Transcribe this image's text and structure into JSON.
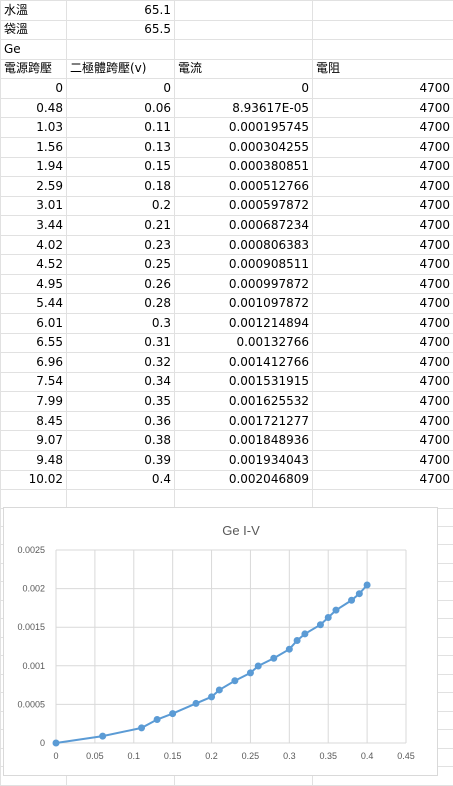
{
  "sheet": {
    "info_rows": [
      [
        "水溫",
        "65.1",
        "",
        ""
      ],
      [
        "袋溫",
        "65.5",
        "",
        ""
      ],
      [
        "Ge",
        "",
        "",
        ""
      ]
    ],
    "headers": [
      "電源跨壓",
      "二極體跨壓(v)",
      "電流",
      "電阻"
    ],
    "rows": [
      [
        "0",
        "0",
        "0",
        "4700"
      ],
      [
        "0.48",
        "0.06",
        "8.93617E-05",
        "4700"
      ],
      [
        "1.03",
        "0.11",
        "0.000195745",
        "4700"
      ],
      [
        "1.56",
        "0.13",
        "0.000304255",
        "4700"
      ],
      [
        "1.94",
        "0.15",
        "0.000380851",
        "4700"
      ],
      [
        "2.59",
        "0.18",
        "0.000512766",
        "4700"
      ],
      [
        "3.01",
        "0.2",
        "0.000597872",
        "4700"
      ],
      [
        "3.44",
        "0.21",
        "0.000687234",
        "4700"
      ],
      [
        "4.02",
        "0.23",
        "0.000806383",
        "4700"
      ],
      [
        "4.52",
        "0.25",
        "0.000908511",
        "4700"
      ],
      [
        "4.95",
        "0.26",
        "0.000997872",
        "4700"
      ],
      [
        "5.44",
        "0.28",
        "0.001097872",
        "4700"
      ],
      [
        "6.01",
        "0.3",
        "0.001214894",
        "4700"
      ],
      [
        "6.55",
        "0.31",
        "0.00132766",
        "4700"
      ],
      [
        "6.96",
        "0.32",
        "0.001412766",
        "4700"
      ],
      [
        "7.54",
        "0.34",
        "0.001531915",
        "4700"
      ],
      [
        "7.99",
        "0.35",
        "0.001625532",
        "4700"
      ],
      [
        "8.45",
        "0.36",
        "0.001721277",
        "4700"
      ],
      [
        "9.07",
        "0.38",
        "0.001848936",
        "4700"
      ],
      [
        "9.48",
        "0.39",
        "0.001934043",
        "4700"
      ],
      [
        "10.02",
        "0.4",
        "0.002046809",
        "4700"
      ]
    ]
  },
  "chart_data": {
    "type": "scatter",
    "title": "Ge I-V",
    "xlabel": "",
    "ylabel": "",
    "xlim": [
      0,
      0.45
    ],
    "ylim": [
      0,
      0.0025
    ],
    "x_ticks": [
      0,
      0.05,
      0.1,
      0.15,
      0.2,
      0.25,
      0.3,
      0.35,
      0.4,
      0.45
    ],
    "x_tick_labels": [
      "0",
      "0.05",
      "0.1",
      "0.15",
      "0.2",
      "0.25",
      "0.3",
      "0.35",
      "0.4",
      "0.45"
    ],
    "y_ticks": [
      0,
      0.0005,
      0.001,
      0.0015,
      0.002,
      0.0025
    ],
    "y_tick_labels": [
      "0",
      "0.0005",
      "0.001",
      "0.0015",
      "0.002",
      "0.0025"
    ],
    "grid": true,
    "legend": "none",
    "color": "#5b9bd5",
    "x": [
      0,
      0.06,
      0.11,
      0.13,
      0.15,
      0.18,
      0.2,
      0.21,
      0.23,
      0.25,
      0.26,
      0.28,
      0.3,
      0.31,
      0.32,
      0.34,
      0.35,
      0.36,
      0.38,
      0.39,
      0.4
    ],
    "y": [
      0,
      8.93617e-05,
      0.000195745,
      0.000304255,
      0.000380851,
      0.000512766,
      0.000597872,
      0.000687234,
      0.000806383,
      0.000908511,
      0.000997872,
      0.001097872,
      0.001214894,
      0.00132766,
      0.001412766,
      0.001531915,
      0.001625532,
      0.001721277,
      0.001848936,
      0.001934043,
      0.002046809
    ]
  }
}
